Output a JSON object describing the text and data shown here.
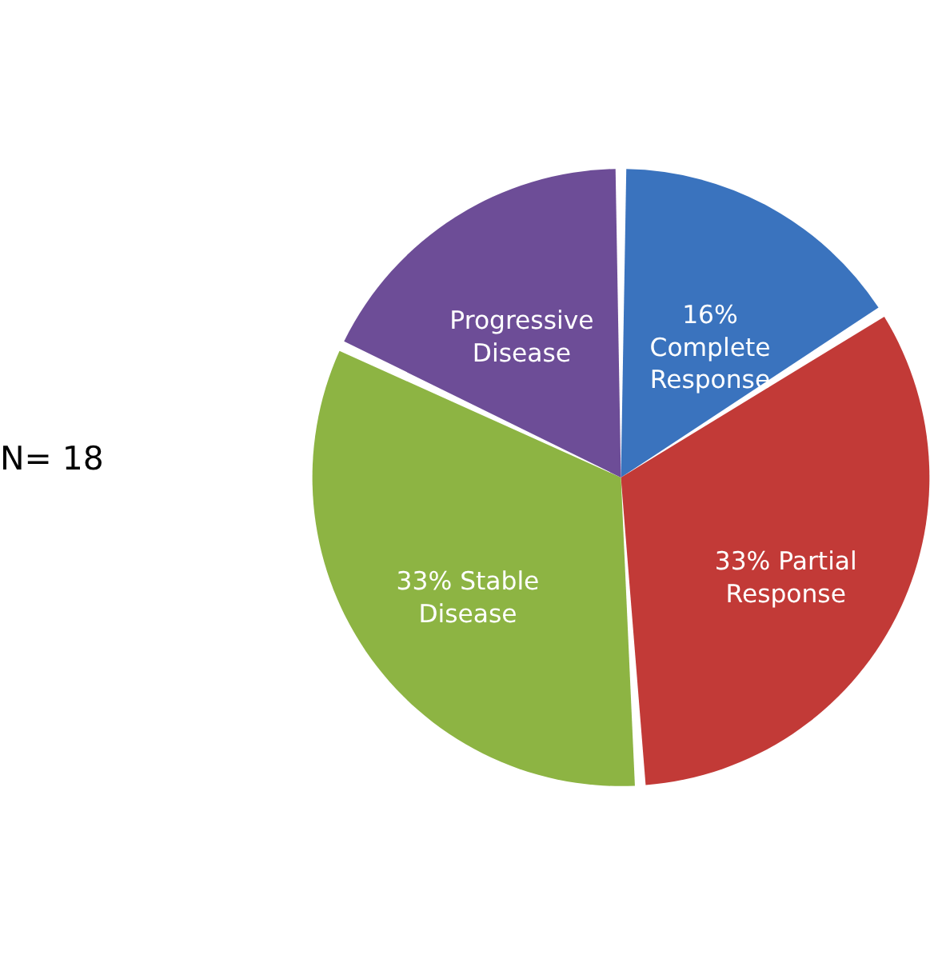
{
  "chart_data": {
    "type": "pie",
    "categories": [
      "Complete Response",
      "Partial Response",
      "Stable Disease",
      "Progressive Disease"
    ],
    "values": [
      16,
      33,
      33,
      18
    ],
    "value_labels": [
      "16%",
      "33%",
      "33%",
      null
    ],
    "colors": [
      "#3a73be",
      "#c23a37",
      "#8db443",
      "#6d4d97"
    ],
    "annotations": [
      "N= 18"
    ]
  }
}
